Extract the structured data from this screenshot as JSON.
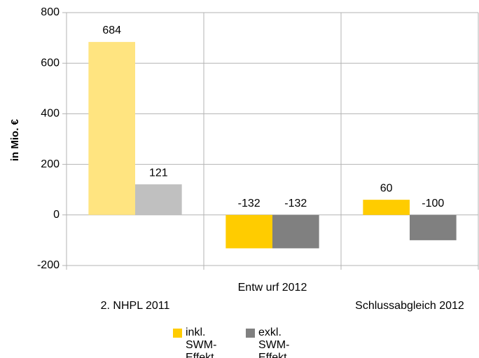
{
  "chart_data": {
    "type": "bar",
    "y_label": "in Mio. €",
    "categories": [
      "2. NHPL 2011",
      "Entw urf 2012",
      "Schlussabgleich 2012"
    ],
    "series": [
      {
        "name": "inkl. SWM-Effekt",
        "color": "#ffcc00",
        "colors": [
          "#ffe480",
          "#ffcc00",
          "#ffcc00"
        ],
        "values": [
          684,
          -132,
          60
        ]
      },
      {
        "name": "exkl. SWM-Effekt",
        "color": "#808080",
        "colors": [
          "#c0c0c0",
          "#808080",
          "#808080"
        ],
        "values": [
          121,
          -132,
          -100
        ]
      }
    ],
    "ylim": [
      -200,
      800
    ],
    "yticks": [
      -200,
      0,
      200,
      400,
      600,
      800
    ],
    "grid": true
  }
}
